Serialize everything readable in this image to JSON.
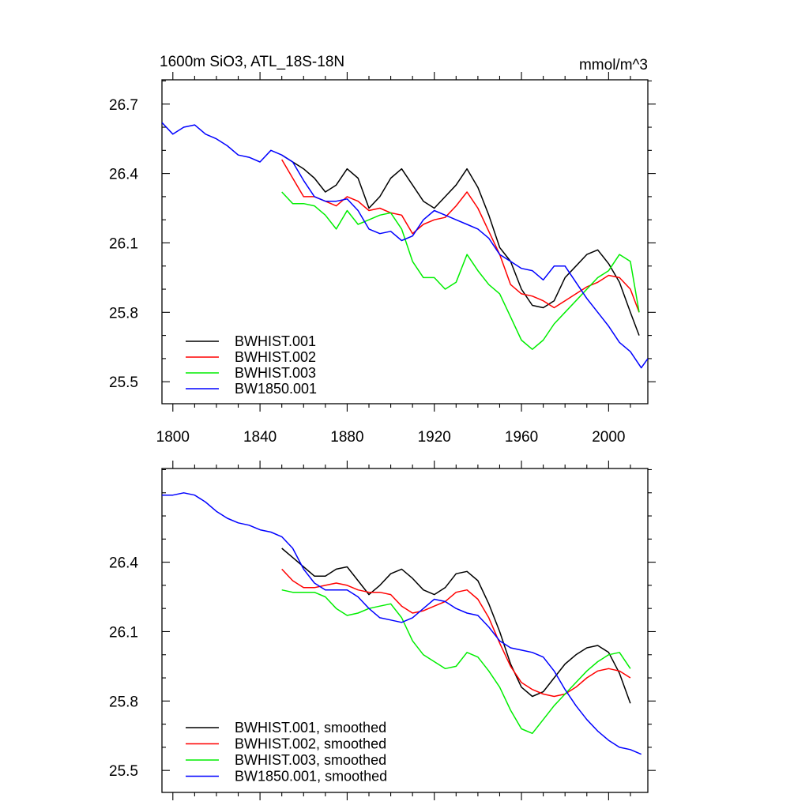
{
  "figure": {
    "title_left": "1600m SiO3, ATL_18S-18N",
    "title_right": "mmol/m^3"
  },
  "colors": {
    "BWHIST.001": "#000000",
    "BWHIST.002": "#ff0000",
    "BWHIST.003": "#00ee00",
    "BW1850.001": "#0000ff"
  },
  "chart_data": [
    {
      "type": "line",
      "title": "1600m SiO3, ATL_18S-18N",
      "units": "mmol/m^3",
      "xlabel": "",
      "ylabel": "",
      "xlim": [
        1795,
        2018
      ],
      "ylim": [
        25.405,
        26.805
      ],
      "x_ticks": [
        1800,
        1840,
        1880,
        1920,
        1960,
        2000
      ],
      "x_tick_labels": [
        "1800",
        "1840",
        "1880",
        "1920",
        "1960",
        "2000"
      ],
      "y_ticks": [
        25.5,
        25.8,
        26.1,
        26.4,
        26.7
      ],
      "y_tick_labels": [
        "25.5",
        "25.8",
        "26.1",
        "26.4",
        "26.7"
      ],
      "legend_position": "bottom-left",
      "series": [
        {
          "name": "BWHIST.001",
          "x": [
            1850,
            1855,
            1860,
            1865,
            1870,
            1875,
            1880,
            1885,
            1890,
            1895,
            1900,
            1905,
            1910,
            1915,
            1920,
            1925,
            1930,
            1935,
            1940,
            1945,
            1950,
            1955,
            1960,
            1965,
            1970,
            1975,
            1980,
            1985,
            1990,
            1995,
            2000,
            2005,
            2010,
            2014
          ],
          "y": [
            26.48,
            26.45,
            26.42,
            26.38,
            26.32,
            26.35,
            26.42,
            26.38,
            26.25,
            26.3,
            26.38,
            26.42,
            26.35,
            26.28,
            26.25,
            26.3,
            26.35,
            26.42,
            26.34,
            26.22,
            26.08,
            26.02,
            25.9,
            25.83,
            25.82,
            25.85,
            25.95,
            26.0,
            26.05,
            26.07,
            26.01,
            25.93,
            25.8,
            25.7
          ]
        },
        {
          "name": "BWHIST.002",
          "x": [
            1850,
            1855,
            1860,
            1865,
            1870,
            1875,
            1880,
            1885,
            1890,
            1895,
            1900,
            1905,
            1910,
            1915,
            1920,
            1925,
            1930,
            1935,
            1940,
            1945,
            1950,
            1955,
            1960,
            1965,
            1970,
            1975,
            1980,
            1985,
            1990,
            1995,
            2000,
            2005,
            2010,
            2014
          ],
          "y": [
            26.46,
            26.38,
            26.3,
            26.3,
            26.28,
            26.26,
            26.3,
            26.28,
            26.24,
            26.25,
            26.23,
            26.22,
            26.14,
            26.18,
            26.2,
            26.21,
            26.26,
            26.32,
            26.25,
            26.15,
            26.05,
            25.92,
            25.88,
            25.87,
            25.85,
            25.82,
            25.85,
            25.88,
            25.91,
            25.93,
            25.96,
            25.95,
            25.9,
            25.8
          ]
        },
        {
          "name": "BWHIST.003",
          "x": [
            1850,
            1855,
            1860,
            1865,
            1870,
            1875,
            1880,
            1885,
            1890,
            1895,
            1900,
            1905,
            1910,
            1915,
            1920,
            1925,
            1930,
            1935,
            1940,
            1945,
            1950,
            1955,
            1960,
            1965,
            1970,
            1975,
            1980,
            1985,
            1990,
            1995,
            2000,
            2005,
            2010,
            2014
          ],
          "y": [
            26.32,
            26.27,
            26.27,
            26.26,
            26.22,
            26.16,
            26.24,
            26.18,
            26.2,
            26.22,
            26.23,
            26.16,
            26.02,
            25.95,
            25.95,
            25.9,
            25.93,
            26.05,
            25.98,
            25.92,
            25.88,
            25.78,
            25.68,
            25.64,
            25.68,
            25.75,
            25.8,
            25.85,
            25.9,
            25.95,
            25.98,
            26.05,
            26.02,
            25.8
          ]
        },
        {
          "name": "BW1850.001",
          "x": [
            1795,
            1800,
            1805,
            1810,
            1815,
            1820,
            1825,
            1830,
            1835,
            1840,
            1845,
            1850,
            1855,
            1860,
            1865,
            1870,
            1875,
            1880,
            1885,
            1890,
            1895,
            1900,
            1905,
            1910,
            1915,
            1920,
            1925,
            1930,
            1935,
            1940,
            1945,
            1950,
            1955,
            1960,
            1965,
            1970,
            1975,
            1980,
            1985,
            1990,
            1995,
            2000,
            2005,
            2010,
            2015,
            2018
          ],
          "y": [
            26.62,
            26.57,
            26.6,
            26.61,
            26.57,
            26.55,
            26.52,
            26.48,
            26.47,
            26.45,
            26.5,
            26.48,
            26.45,
            26.37,
            26.3,
            26.28,
            26.28,
            26.29,
            26.24,
            26.16,
            26.14,
            26.15,
            26.11,
            26.13,
            26.2,
            26.24,
            26.22,
            26.2,
            26.18,
            26.16,
            26.12,
            26.05,
            26.02,
            25.99,
            25.98,
            25.94,
            26.0,
            26.0,
            25.93,
            25.86,
            25.8,
            25.74,
            25.67,
            25.63,
            25.56,
            25.6
          ]
        }
      ]
    },
    {
      "type": "line",
      "title": "",
      "xlabel": "",
      "ylabel": "",
      "xlim": [
        1795,
        2018
      ],
      "ylim": [
        25.405,
        26.805
      ],
      "x_ticks": [
        1800,
        1840,
        1880,
        1920,
        1960,
        2000
      ],
      "x_tick_labels": [],
      "y_ticks": [
        25.5,
        25.8,
        26.1,
        26.4
      ],
      "y_tick_labels": [
        "25.5",
        "25.8",
        "26.1",
        "26.4"
      ],
      "legend_position": "bottom-left",
      "series": [
        {
          "name": "BWHIST.001, smoothed",
          "x": [
            1850,
            1855,
            1860,
            1865,
            1870,
            1875,
            1880,
            1885,
            1890,
            1895,
            1900,
            1905,
            1910,
            1915,
            1920,
            1925,
            1930,
            1935,
            1940,
            1945,
            1950,
            1955,
            1960,
            1965,
            1970,
            1975,
            1980,
            1985,
            1990,
            1995,
            2000,
            2005,
            2010
          ],
          "y": [
            26.46,
            26.42,
            26.38,
            26.34,
            26.34,
            26.37,
            26.38,
            26.32,
            26.26,
            26.3,
            26.35,
            26.37,
            26.33,
            26.28,
            26.26,
            26.29,
            26.35,
            26.36,
            26.32,
            26.22,
            26.1,
            25.96,
            25.86,
            25.82,
            25.84,
            25.9,
            25.96,
            26.0,
            26.03,
            26.04,
            26.01,
            25.92,
            25.79
          ]
        },
        {
          "name": "BWHIST.002, smoothed",
          "x": [
            1850,
            1855,
            1860,
            1865,
            1870,
            1875,
            1880,
            1885,
            1890,
            1895,
            1900,
            1905,
            1910,
            1915,
            1920,
            1925,
            1930,
            1935,
            1940,
            1945,
            1950,
            1955,
            1960,
            1965,
            1970,
            1975,
            1980,
            1985,
            1990,
            1995,
            2000,
            2005,
            2010
          ],
          "y": [
            26.37,
            26.32,
            26.29,
            26.29,
            26.3,
            26.31,
            26.3,
            26.28,
            26.27,
            26.27,
            26.26,
            26.21,
            26.18,
            26.19,
            26.21,
            26.23,
            26.27,
            26.28,
            26.24,
            26.16,
            26.05,
            25.95,
            25.88,
            25.85,
            25.83,
            25.82,
            25.83,
            25.86,
            25.9,
            25.93,
            25.94,
            25.93,
            25.9
          ]
        },
        {
          "name": "BWHIST.003, smoothed",
          "x": [
            1850,
            1855,
            1860,
            1865,
            1870,
            1875,
            1880,
            1885,
            1890,
            1895,
            1900,
            1905,
            1910,
            1915,
            1920,
            1925,
            1930,
            1935,
            1940,
            1945,
            1950,
            1955,
            1960,
            1965,
            1970,
            1975,
            1980,
            1985,
            1990,
            1995,
            2000,
            2005,
            2010
          ],
          "y": [
            26.28,
            26.27,
            26.27,
            26.27,
            26.25,
            26.2,
            26.17,
            26.18,
            26.2,
            26.21,
            26.22,
            26.16,
            26.06,
            26.0,
            25.97,
            25.94,
            25.95,
            26.01,
            25.99,
            25.93,
            25.86,
            25.76,
            25.68,
            25.66,
            25.72,
            25.78,
            25.83,
            25.88,
            25.93,
            25.97,
            26.0,
            26.01,
            25.94
          ]
        },
        {
          "name": "BW1850.001, smoothed",
          "x": [
            1795,
            1800,
            1805,
            1810,
            1815,
            1820,
            1825,
            1830,
            1835,
            1840,
            1845,
            1850,
            1855,
            1860,
            1865,
            1870,
            1875,
            1880,
            1885,
            1890,
            1895,
            1900,
            1905,
            1910,
            1915,
            1920,
            1925,
            1930,
            1935,
            1940,
            1945,
            1950,
            1955,
            1960,
            1965,
            1970,
            1975,
            1980,
            1985,
            1990,
            1995,
            2000,
            2005,
            2010,
            2015
          ],
          "y": [
            26.69,
            26.69,
            26.7,
            26.69,
            26.66,
            26.62,
            26.59,
            26.57,
            26.56,
            26.54,
            26.53,
            26.51,
            26.46,
            26.37,
            26.31,
            26.28,
            26.28,
            26.28,
            26.25,
            26.2,
            26.16,
            26.15,
            26.14,
            26.16,
            26.2,
            26.24,
            26.23,
            26.2,
            26.18,
            26.17,
            26.12,
            26.06,
            26.03,
            26.02,
            26.01,
            25.99,
            25.93,
            25.85,
            25.78,
            25.72,
            25.67,
            25.63,
            25.6,
            25.59,
            25.57
          ]
        }
      ]
    }
  ]
}
